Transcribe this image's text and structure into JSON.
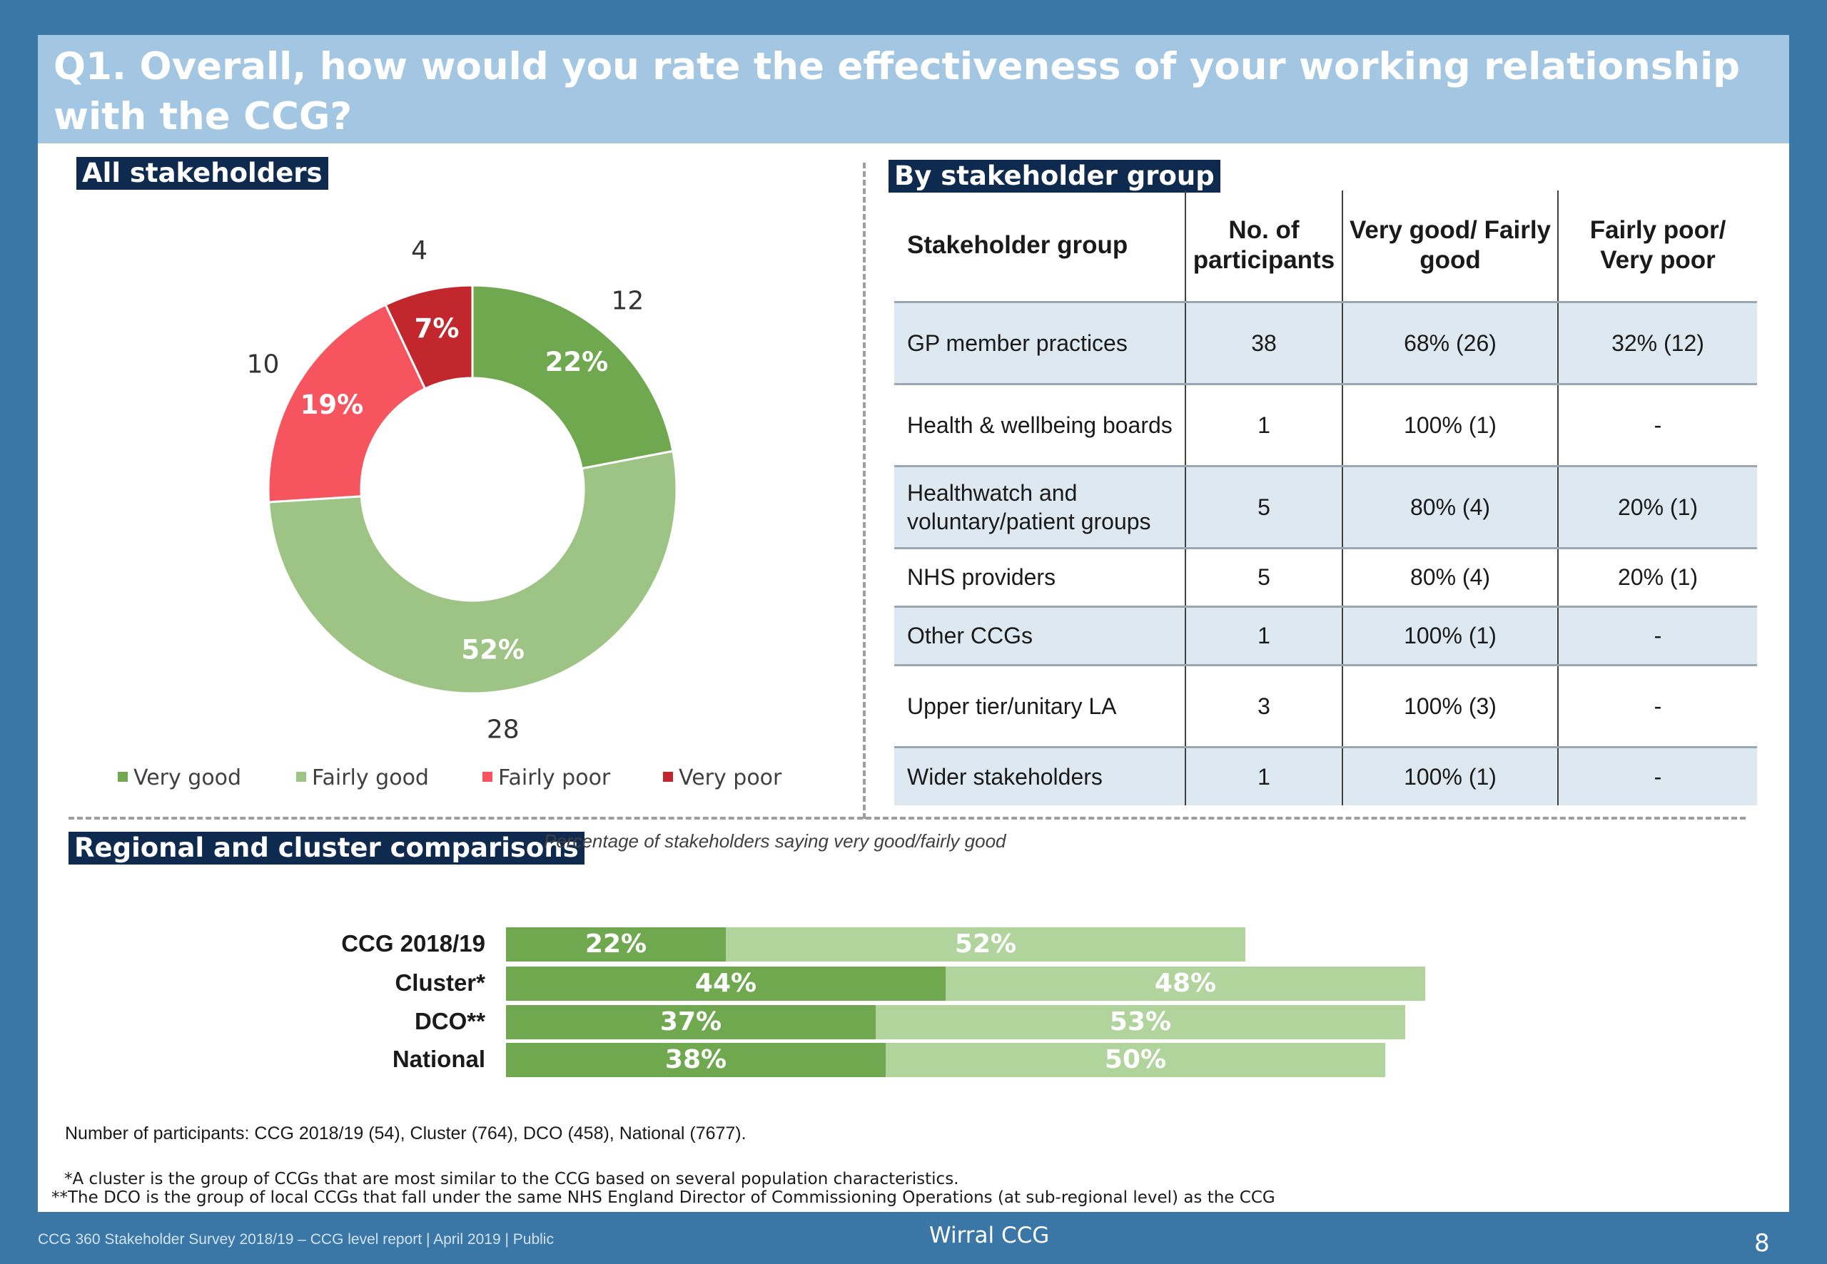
{
  "title": "Q1. Overall, how would you rate the effectiveness of your working relationship with the CCG?",
  "sections": {
    "all": "All stakeholders",
    "by_group": "By stakeholder group",
    "regional": "Regional and cluster comparisons"
  },
  "legend": [
    "Very good",
    "Fairly good",
    "Fairly poor",
    "Very poor"
  ],
  "colors": {
    "very_good": "#70a84f",
    "fairly_good": "#9dc484",
    "fairly_poor": "#f6545e",
    "very_poor": "#c3272e",
    "bar_dark": "#70a84f",
    "bar_light": "#b1d39c"
  },
  "table": {
    "headers": [
      "Stakeholder group",
      "No. of participants",
      "Very good/ Fairly good",
      "Fairly poor/ Very poor"
    ],
    "rows": [
      [
        "GP member practices",
        "38",
        "68% (26)",
        "32% (12)"
      ],
      [
        "Health & wellbeing boards",
        "1",
        "100% (1)",
        "-"
      ],
      [
        "Healthwatch and voluntary/patient groups",
        "5",
        "80% (4)",
        "20% (1)"
      ],
      [
        "NHS providers",
        "5",
        "80% (4)",
        "20% (1)"
      ],
      [
        "Other CCGs",
        "1",
        "100% (1)",
        "-"
      ],
      [
        "Upper tier/unitary LA",
        "3",
        "100% (3)",
        "-"
      ],
      [
        "Wider stakeholders",
        "1",
        "100% (1)",
        "-"
      ]
    ]
  },
  "regional_note": "Percentage of stakeholders saying very good/fairly good",
  "notes": {
    "participants": "Number of participants: CCG 2018/19 (54), Cluster (764), DCO (458), National (7677).",
    "cluster": "*A cluster is the group of CCGs that are most similar to the CCG based on several population characteristics.",
    "dco": "**The DCO is the group of local CCGs that fall under the same NHS England Director of Commissioning Operations (at sub-regional level) as the CCG"
  },
  "footer": {
    "left": "CCG 360 Stakeholder Survey 2018/19 – CCG level report |  April 2019 | Public",
    "center": "Wirral CCG",
    "page": "8"
  },
  "chart_data": [
    {
      "type": "pie",
      "title": "",
      "categories": [
        "Very good",
        "Fairly good",
        "Fairly poor",
        "Very poor"
      ],
      "values": [
        22,
        52,
        19,
        7
      ],
      "counts": [
        12,
        28,
        10,
        4
      ],
      "labels": [
        "22%",
        "52%",
        "19%",
        "7%"
      ],
      "donut": true
    },
    {
      "type": "bar",
      "orientation": "horizontal",
      "stacked": true,
      "categories": [
        "CCG 2018/19",
        "Cluster*",
        "DCO**",
        "National"
      ],
      "series": [
        {
          "name": "Very good",
          "values": [
            22,
            44,
            37,
            38
          ]
        },
        {
          "name": "Fairly good",
          "values": [
            52,
            48,
            53,
            50
          ]
        }
      ],
      "xlim": [
        0,
        100
      ]
    }
  ]
}
